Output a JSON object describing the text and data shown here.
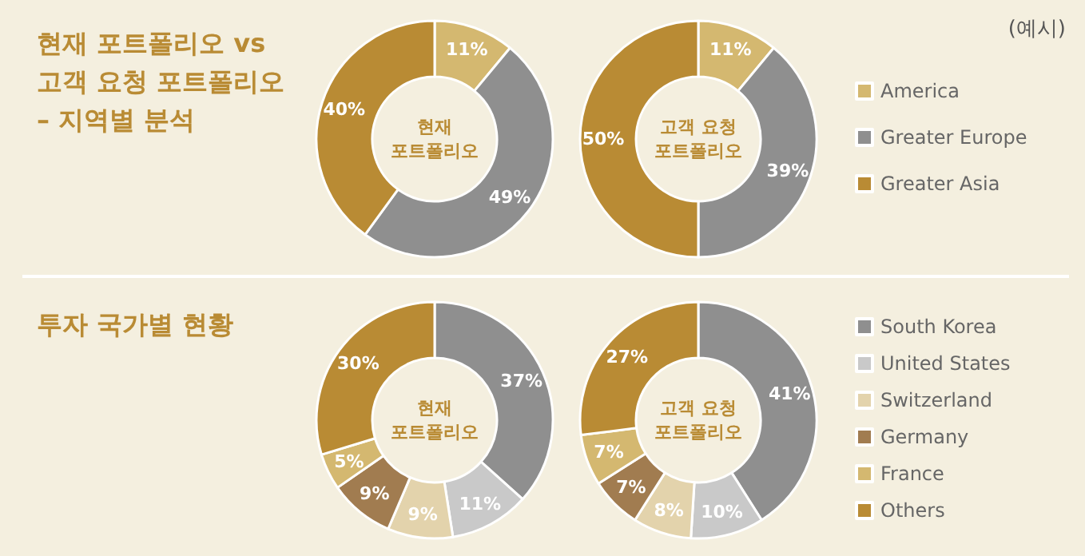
{
  "chart_data": [
    {
      "type": "donut",
      "title": "현재 포트폴리오 vs\n고객 요청 포트폴리오\n– 지역별 분석",
      "annotations": [
        "(예시)"
      ],
      "categories": [
        "America",
        "Greater Europe",
        "Greater Asia"
      ],
      "colors": [
        "#d4b870",
        "#8f8f8f",
        "#b98b34"
      ],
      "legend": "right",
      "series": [
        {
          "name": "현재 포트폴리오",
          "values": [
            11,
            49,
            40
          ],
          "value_labels": [
            "11%",
            "49%",
            "40%"
          ]
        },
        {
          "name": "고객 요청 포트폴리오",
          "values": [
            11,
            39,
            50
          ],
          "value_labels": [
            "11%",
            "39%",
            "50%"
          ]
        }
      ]
    },
    {
      "type": "donut",
      "title": "투자 국가별 현황",
      "categories": [
        "South Korea",
        "United States",
        "Switzerland",
        "Germany",
        "France",
        "Others"
      ],
      "colors": [
        "#8f8f8f",
        "#c9c9c9",
        "#e3d3ac",
        "#a17c50",
        "#d4b870",
        "#b98b34"
      ],
      "legend": "right",
      "series": [
        {
          "name": "현재 포트폴리오",
          "values": [
            37,
            11,
            9,
            9,
            5,
            30
          ],
          "value_labels": [
            "37%",
            "11%",
            "9%",
            "9%",
            "5%",
            "30%"
          ]
        },
        {
          "name": "고객 요청 포트폴리오",
          "values": [
            41,
            10,
            8,
            7,
            7,
            27
          ],
          "value_labels": [
            "41%",
            "10%",
            "8%",
            "7%",
            "7%",
            "27%"
          ]
        }
      ]
    }
  ]
}
